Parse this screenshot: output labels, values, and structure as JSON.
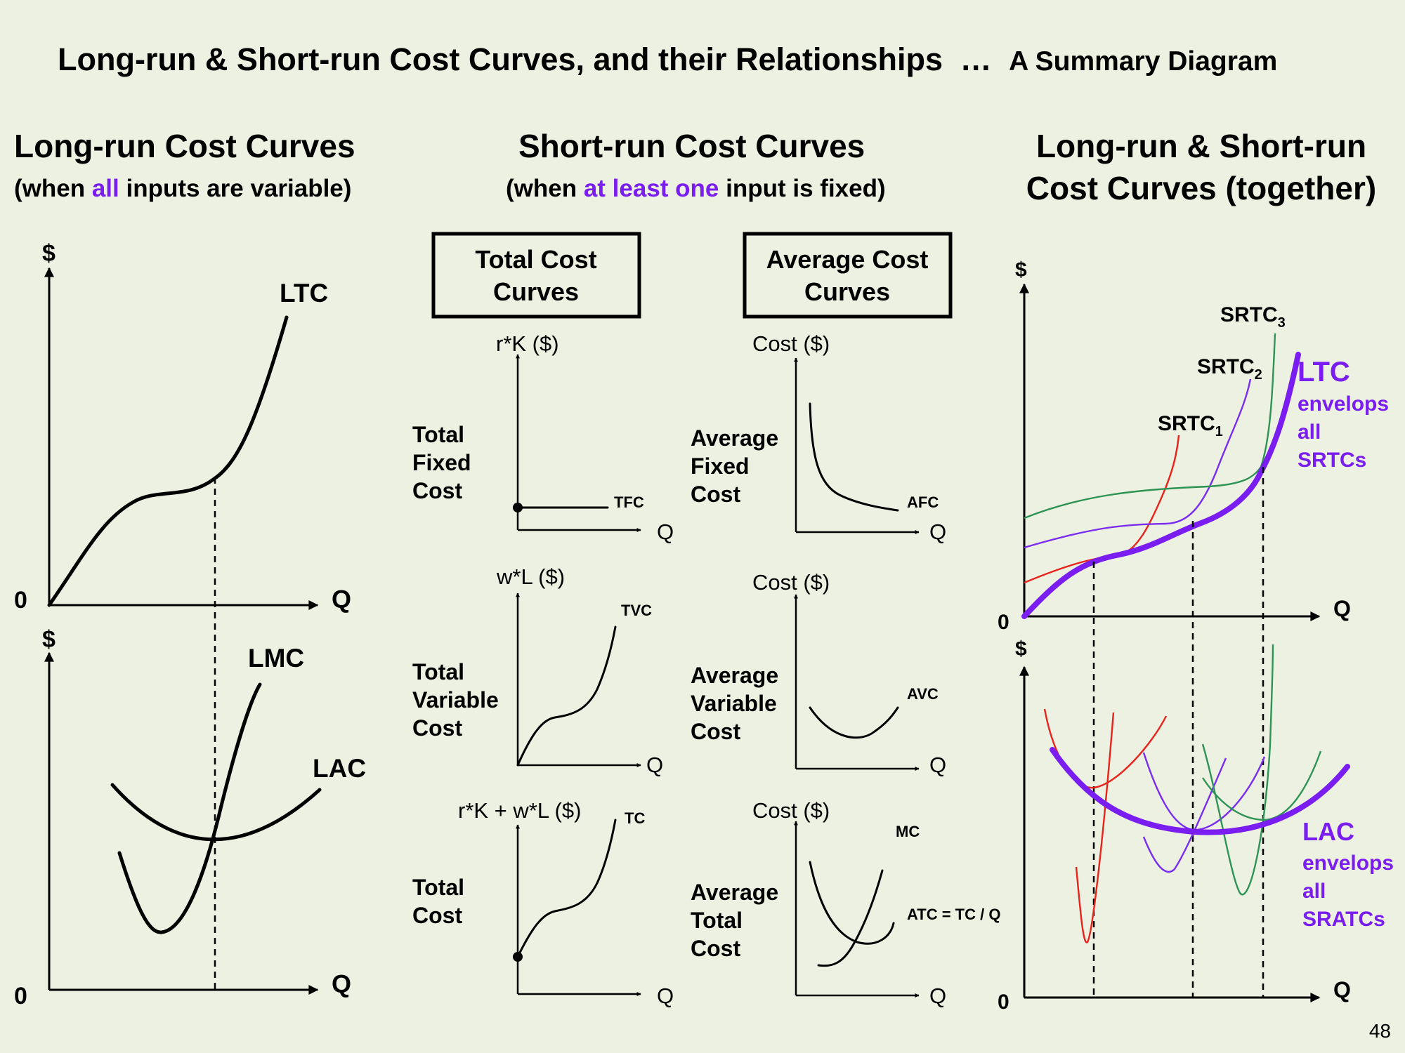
{
  "title": {
    "main": "Long-run & Short-run Cost Curves, and their Relationships",
    "ellipsis": "…",
    "suffix": "A Summary Diagram"
  },
  "left_panel": {
    "heading": "Long-run Cost Curves",
    "sub_before": "(when ",
    "sub_highlight": "all",
    "sub_after": " inputs are variable)",
    "top": {
      "y_label": "$",
      "x_label": "Q",
      "origin": "0",
      "curve": "LTC"
    },
    "bottom": {
      "y_label": "$",
      "x_label": "Q",
      "origin": "0",
      "curve_mc": "LMC",
      "curve_ac": "LAC"
    }
  },
  "middle_panel": {
    "heading": "Short-run Cost Curves",
    "sub_before": "(when ",
    "sub_highlight": "at least one",
    "sub_after": " input is fixed)",
    "total_box": [
      "Total Cost",
      "Curves"
    ],
    "average_box": [
      "Average Cost",
      "Curves"
    ],
    "total": [
      {
        "row_label": [
          "Total",
          "Fixed",
          "Cost"
        ],
        "y_label": "r*K ($)",
        "x_label": "Q",
        "curve": "TFC"
      },
      {
        "row_label": [
          "Total",
          "Variable",
          "Cost"
        ],
        "y_label": "w*L ($)",
        "x_label": "Q",
        "curve": "TVC"
      },
      {
        "row_label": [
          "Total",
          "Cost"
        ],
        "y_label": "r*K + w*L ($)",
        "x_label": "Q",
        "curve": "TC"
      }
    ],
    "average": [
      {
        "row_label": [
          "Average",
          "Fixed",
          "Cost"
        ],
        "y_label": "Cost ($)",
        "x_label": "Q",
        "curve": "AFC"
      },
      {
        "row_label": [
          "Average",
          "Variable",
          "Cost"
        ],
        "y_label": "Cost ($)",
        "x_label": "Q",
        "curve": "AVC"
      },
      {
        "row_label": [
          "Average",
          "Total",
          "Cost"
        ],
        "y_label": "Cost ($)",
        "x_label": "Q",
        "curve": "ATC = TC / Q",
        "curve_mc": "MC"
      }
    ]
  },
  "right_panel": {
    "heading": [
      "Long-run & Short-run",
      "Cost Curves (together)"
    ],
    "top": {
      "y_label": "$",
      "x_label": "Q",
      "origin": "0",
      "srtc": [
        {
          "base": "SRTC",
          "sub": "1"
        },
        {
          "base": "SRTC",
          "sub": "2"
        },
        {
          "base": "SRTC",
          "sub": "3"
        }
      ],
      "env_title": "LTC",
      "env_text": [
        "envelops",
        "all",
        "SRTCs"
      ]
    },
    "bottom": {
      "y_label": "$",
      "x_label": "Q",
      "origin": "0",
      "env_title": "LAC",
      "env_text": [
        "envelops",
        "all",
        "SRATCs"
      ]
    }
  },
  "page_number": "48",
  "colors": {
    "background": "#edf1e1",
    "highlight": "#7a1df0",
    "short_run_1": "#e8231c",
    "short_run_2": "#7a2df0",
    "short_run_3": "#2e9455"
  }
}
